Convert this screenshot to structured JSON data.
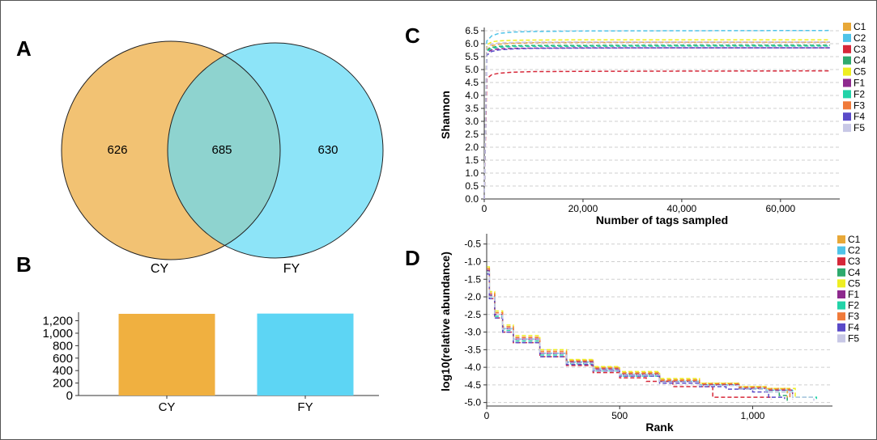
{
  "panels": [
    "A",
    "B",
    "C",
    "D"
  ],
  "venn": {
    "sets": [
      {
        "name": "CY",
        "color": "#F0B75A",
        "unique": 626
      },
      {
        "name": "FY",
        "color": "#5CD8F5",
        "unique": 630
      }
    ],
    "overlap": 685,
    "overlap_color": "#8ED3CF"
  },
  "chart_data": [
    {
      "panel": "B",
      "type": "bar",
      "categories": [
        "CY",
        "FY"
      ],
      "values": [
        1311,
        1315
      ],
      "colors": [
        "#F0B040",
        "#5DD5F4"
      ],
      "ylim": [
        0,
        1311
      ],
      "yticks": [
        0,
        200,
        400,
        600,
        800,
        1000,
        1200
      ],
      "ytick_labels": [
        "0",
        "200",
        "400",
        "600",
        "800",
        "1,000",
        "1,200"
      ],
      "grid": false
    },
    {
      "panel": "C",
      "type": "line",
      "xlabel": "Number of tags sampled",
      "ylabel": "Shannon",
      "xlim": [
        0,
        72000
      ],
      "ylim": [
        0,
        6.5
      ],
      "xticks": [
        0,
        20000,
        40000,
        60000
      ],
      "xtick_labels": [
        "0",
        "20,000",
        "40,000",
        "60,000"
      ],
      "yticks": [
        0,
        0.5,
        1,
        1.5,
        2,
        2.5,
        3,
        3.5,
        4,
        4.5,
        5,
        5.5,
        6,
        6.5
      ],
      "ytick_labels": [
        "0.0",
        "0.5",
        "1.0",
        "1.5",
        "2.0",
        "2.5",
        "3.0",
        "3.5",
        "4.0",
        "4.5",
        "5.0",
        "5.5",
        "6.0",
        "6.5"
      ],
      "grid": true,
      "legend_position": "right",
      "series": [
        {
          "name": "C1",
          "color": "#E8A838",
          "x": [
            0,
            500,
            1500,
            3000,
            6000,
            10000,
            20000,
            40000,
            70000
          ],
          "y": [
            0,
            5.75,
            5.92,
            5.98,
            6.02,
            6.04,
            6.05,
            6.06,
            6.06
          ]
        },
        {
          "name": "C2",
          "color": "#4FC3E8",
          "x": [
            0,
            500,
            1500,
            3000,
            6000,
            10000,
            20000,
            40000,
            70000
          ],
          "y": [
            0,
            6.1,
            6.3,
            6.4,
            6.45,
            6.47,
            6.49,
            6.5,
            6.51
          ]
        },
        {
          "name": "C3",
          "color": "#D62839",
          "x": [
            0,
            500,
            1500,
            3000,
            6000,
            10000,
            20000,
            40000,
            70000
          ],
          "y": [
            0,
            4.65,
            4.8,
            4.86,
            4.9,
            4.92,
            4.93,
            4.94,
            4.95
          ]
        },
        {
          "name": "C4",
          "color": "#2EAA6E",
          "x": [
            0,
            500,
            1500,
            3000,
            6000,
            10000,
            20000,
            40000,
            70000
          ],
          "y": [
            0,
            5.75,
            5.86,
            5.9,
            5.92,
            5.93,
            5.93,
            5.94,
            5.94
          ]
        },
        {
          "name": "C5",
          "color": "#EEEE22",
          "x": [
            0,
            500,
            1500,
            3000,
            6000,
            10000,
            20000,
            40000,
            70000
          ],
          "y": [
            0,
            5.95,
            6.07,
            6.11,
            6.13,
            6.14,
            6.15,
            6.15,
            6.15
          ]
        },
        {
          "name": "F1",
          "color": "#8E2A8E",
          "x": [
            0,
            500,
            1500,
            3000,
            6000,
            10000,
            20000,
            40000,
            70000
          ],
          "y": [
            0,
            5.65,
            5.76,
            5.8,
            5.82,
            5.83,
            5.84,
            5.84,
            5.84
          ]
        },
        {
          "name": "F2",
          "color": "#22D3A8",
          "x": [
            0,
            500,
            1500,
            3000,
            6000,
            10000,
            20000,
            40000,
            70000
          ],
          "y": [
            0,
            5.7,
            5.82,
            5.86,
            5.89,
            5.9,
            5.9,
            5.91,
            5.91
          ]
        },
        {
          "name": "F3",
          "color": "#F07A3A",
          "x": [
            0,
            500,
            1500,
            3000,
            6000,
            10000,
            20000,
            40000,
            70000
          ],
          "y": [
            0,
            5.85,
            5.98,
            6.02,
            6.04,
            6.05,
            6.06,
            6.06,
            6.06
          ]
        },
        {
          "name": "F4",
          "color": "#5A4AC8",
          "x": [
            0,
            500,
            1500,
            3000,
            6000,
            10000,
            20000,
            40000,
            70000
          ],
          "y": [
            0,
            5.55,
            5.7,
            5.76,
            5.8,
            5.82,
            5.83,
            5.84,
            5.84
          ]
        },
        {
          "name": "F5",
          "color": "#C8C8E6",
          "x": [
            0,
            500,
            1500,
            3000,
            6000,
            10000,
            20000,
            40000,
            70000
          ],
          "y": [
            0,
            5.85,
            5.98,
            6.02,
            6.05,
            6.06,
            6.07,
            6.07,
            6.07
          ]
        }
      ]
    },
    {
      "panel": "D",
      "type": "line",
      "xlabel": "Rank",
      "ylabel": "log10(relative abundance)",
      "xlim": [
        0,
        1300
      ],
      "ylim": [
        -5.1,
        -0.3
      ],
      "xticks": [
        0,
        500,
        1000
      ],
      "xtick_labels": [
        "0",
        "500",
        "1,000"
      ],
      "yticks": [
        -5,
        -4.5,
        -4,
        -3.5,
        -3,
        -2.5,
        -2,
        -1.5,
        -1,
        -0.5
      ],
      "ytick_labels": [
        "-5.0",
        "-4.5",
        "-4.0",
        "-3.5",
        "-3.0",
        "-2.5",
        "-2.0",
        "-1.5",
        "-1.0",
        "-0.5"
      ],
      "grid": true,
      "legend_position": "right",
      "series": [
        {
          "name": "C1",
          "color": "#E8A838",
          "x": [
            1,
            10,
            30,
            60,
            100,
            200,
            300,
            400,
            500,
            650,
            800,
            950,
            1050,
            1100,
            1130
          ],
          "y": [
            -1.2,
            -1.9,
            -2.45,
            -2.85,
            -3.15,
            -3.55,
            -3.8,
            -4.0,
            -4.15,
            -4.35,
            -4.45,
            -4.55,
            -4.6,
            -4.6,
            -4.9
          ]
        },
        {
          "name": "C2",
          "color": "#4FC3E8",
          "x": [
            1,
            10,
            30,
            60,
            100,
            200,
            300,
            400,
            500,
            650,
            800,
            950,
            1050,
            1150,
            1230
          ],
          "y": [
            -1.3,
            -2.0,
            -2.5,
            -2.9,
            -3.2,
            -3.6,
            -3.85,
            -4.05,
            -4.2,
            -4.4,
            -4.5,
            -4.6,
            -4.65,
            -4.85,
            -4.9
          ]
        },
        {
          "name": "C3",
          "color": "#D62839",
          "x": [
            1,
            10,
            30,
            60,
            100,
            200,
            300,
            400,
            500,
            600,
            700,
            770,
            850,
            1000,
            1070
          ],
          "y": [
            -1.2,
            -2.05,
            -2.6,
            -3.0,
            -3.3,
            -3.7,
            -3.95,
            -4.15,
            -4.3,
            -4.4,
            -4.55,
            -4.55,
            -4.85,
            -4.85,
            -4.9
          ]
        },
        {
          "name": "C4",
          "color": "#2EAA6E",
          "x": [
            1,
            10,
            30,
            60,
            100,
            200,
            300,
            400,
            500,
            650,
            800,
            950,
            1050,
            1100,
            1130
          ],
          "y": [
            -1.25,
            -1.95,
            -2.5,
            -2.9,
            -3.2,
            -3.6,
            -3.85,
            -4.05,
            -4.2,
            -4.4,
            -4.5,
            -4.6,
            -4.65,
            -4.8,
            -4.95
          ]
        },
        {
          "name": "C5",
          "color": "#EEEE22",
          "x": [
            1,
            10,
            30,
            60,
            100,
            200,
            300,
            400,
            500,
            650,
            800,
            950,
            1050,
            1100,
            1160
          ],
          "y": [
            -1.15,
            -1.85,
            -2.4,
            -2.8,
            -3.1,
            -3.5,
            -3.78,
            -3.98,
            -4.12,
            -4.32,
            -4.45,
            -4.55,
            -4.6,
            -4.6,
            -4.9
          ]
        },
        {
          "name": "F1",
          "color": "#8E2A8E",
          "x": [
            1,
            10,
            30,
            60,
            100,
            200,
            300,
            400,
            500,
            650,
            800,
            950,
            1050,
            1100,
            1150
          ],
          "y": [
            -1.25,
            -1.95,
            -2.5,
            -2.9,
            -3.2,
            -3.6,
            -3.85,
            -4.05,
            -4.2,
            -4.4,
            -4.5,
            -4.6,
            -4.65,
            -4.65,
            -4.9
          ]
        },
        {
          "name": "F2",
          "color": "#22D3A8",
          "x": [
            1,
            10,
            30,
            60,
            100,
            200,
            300,
            400,
            500,
            650,
            800,
            950,
            1050,
            1150,
            1240
          ],
          "y": [
            -1.3,
            -2.0,
            -2.55,
            -2.95,
            -3.25,
            -3.65,
            -3.9,
            -4.1,
            -4.25,
            -4.42,
            -4.52,
            -4.62,
            -4.7,
            -4.85,
            -4.9
          ]
        },
        {
          "name": "F3",
          "color": "#F07A3A",
          "x": [
            1,
            10,
            30,
            60,
            100,
            200,
            300,
            400,
            500,
            650,
            800,
            950,
            1050,
            1100,
            1140
          ],
          "y": [
            -1.2,
            -1.9,
            -2.45,
            -2.85,
            -3.15,
            -3.55,
            -3.82,
            -4.02,
            -4.17,
            -4.37,
            -4.47,
            -4.57,
            -4.62,
            -4.62,
            -4.9
          ]
        },
        {
          "name": "F4",
          "color": "#5A4AC8",
          "x": [
            1,
            10,
            30,
            60,
            100,
            200,
            300,
            400,
            500,
            650,
            800,
            900,
            1000,
            1060,
            1120
          ],
          "y": [
            -1.35,
            -2.05,
            -2.6,
            -3.0,
            -3.3,
            -3.7,
            -3.92,
            -4.1,
            -4.25,
            -4.45,
            -4.55,
            -4.62,
            -4.7,
            -4.85,
            -4.9
          ]
        },
        {
          "name": "F5",
          "color": "#C8C8E6",
          "x": [
            1,
            10,
            30,
            60,
            100,
            200,
            300,
            400,
            500,
            650,
            800,
            950,
            1050,
            1150,
            1230
          ],
          "y": [
            -1.3,
            -2.0,
            -2.5,
            -2.92,
            -3.22,
            -3.62,
            -3.88,
            -4.08,
            -4.22,
            -4.42,
            -4.52,
            -4.62,
            -4.7,
            -4.85,
            -4.95
          ]
        }
      ]
    }
  ]
}
